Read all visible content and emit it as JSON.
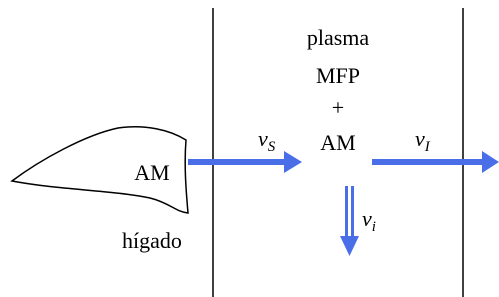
{
  "liver": {
    "content": "AM",
    "label": "hígado"
  },
  "compartment": {
    "lines": [
      "plasma",
      "MFP",
      "+",
      "AM"
    ]
  },
  "flows": [
    {
      "symbol": "v",
      "subscript": "S"
    },
    {
      "symbol": "v",
      "subscript": "I"
    },
    {
      "symbol": "v",
      "subscript": "i"
    }
  ]
}
